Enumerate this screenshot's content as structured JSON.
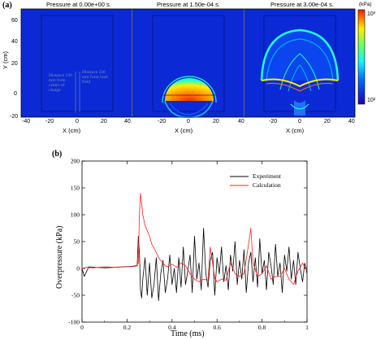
{
  "panel_a": {
    "tag": "(a)",
    "titles": [
      "Pressure at 0.00e+00 s.",
      "Pressure at 1.50e-04 s.",
      "Pressure at 3.00e-04 s."
    ],
    "xlabel": "X (cm)",
    "ylabel": "Y (cm)",
    "xticks": [
      "-40",
      "-20",
      "0",
      "20",
      "40"
    ],
    "yticks": [
      "60",
      "40",
      "20",
      "0",
      "-20"
    ],
    "colorbar": {
      "unit": "(kPa)",
      "max_label": "10³",
      "min_label": "10²"
    },
    "annotation_left": "Distance 230 mm from center of charge",
    "annotation_right": "Distance 230 mm from load field",
    "colors": {
      "background": "#0b2ad6",
      "hot": "#ff2a00",
      "warm": "#ffdd00",
      "mid": "#18ffd0"
    }
  },
  "chart_data": {
    "type": "line",
    "tag": "(b)",
    "xlabel": "Time (ms)",
    "ylabel": "Overpressure (kPa)",
    "xlim": [
      0,
      1
    ],
    "ylim": [
      -100,
      200
    ],
    "xticks": [
      "0",
      "0.2",
      "0.4",
      "0.6",
      "0.8",
      "1"
    ],
    "yticks": [
      "200",
      "150",
      "100",
      "50",
      "0",
      "-50",
      "-100"
    ],
    "legend_position": "top-right",
    "series": [
      {
        "name": "Experiment",
        "color": "#000000",
        "x": [
          0,
          0.01,
          0.03,
          0.06,
          0.1,
          0.14,
          0.18,
          0.22,
          0.245,
          0.25,
          0.255,
          0.26,
          0.265,
          0.27,
          0.28,
          0.29,
          0.3,
          0.31,
          0.32,
          0.33,
          0.34,
          0.35,
          0.36,
          0.37,
          0.38,
          0.39,
          0.4,
          0.41,
          0.42,
          0.43,
          0.44,
          0.45,
          0.46,
          0.47,
          0.48,
          0.49,
          0.5,
          0.51,
          0.52,
          0.53,
          0.54,
          0.55,
          0.56,
          0.57,
          0.58,
          0.59,
          0.6,
          0.61,
          0.62,
          0.63,
          0.64,
          0.65,
          0.66,
          0.67,
          0.68,
          0.69,
          0.7,
          0.71,
          0.72,
          0.73,
          0.74,
          0.75,
          0.76,
          0.77,
          0.78,
          0.79,
          0.8,
          0.81,
          0.82,
          0.83,
          0.84,
          0.85,
          0.86,
          0.87,
          0.88,
          0.89,
          0.9,
          0.91,
          0.92,
          0.93,
          0.94,
          0.95,
          0.96,
          0.97,
          0.98,
          0.99,
          1.0
        ],
        "y": [
          0,
          -15,
          3,
          2,
          1,
          2,
          3,
          4,
          5,
          60,
          30,
          -40,
          -55,
          -20,
          20,
          -50,
          10,
          -55,
          -30,
          20,
          -60,
          -10,
          15,
          -45,
          -20,
          25,
          -30,
          0,
          -45,
          20,
          -35,
          40,
          -30,
          -5,
          25,
          -45,
          60,
          -20,
          10,
          -40,
          75,
          -10,
          -35,
          15,
          30,
          -50,
          20,
          -10,
          40,
          -25,
          5,
          -40,
          25,
          -5,
          50,
          -30,
          15,
          -20,
          35,
          -45,
          10,
          30,
          -25,
          20,
          -35,
          55,
          -10,
          15,
          -40,
          30,
          5,
          -30,
          45,
          -15,
          10,
          -45,
          25,
          -5,
          40,
          -20,
          15,
          -30,
          30,
          0,
          -25,
          10,
          -10
        ]
      },
      {
        "name": "Calculation",
        "color": "#ff2020",
        "x": [
          0,
          0.02,
          0.05,
          0.1,
          0.15,
          0.2,
          0.24,
          0.25,
          0.255,
          0.26,
          0.265,
          0.27,
          0.28,
          0.29,
          0.3,
          0.31,
          0.32,
          0.33,
          0.34,
          0.35,
          0.36,
          0.37,
          0.38,
          0.39,
          0.4,
          0.42,
          0.44,
          0.46,
          0.48,
          0.5,
          0.52,
          0.54,
          0.56,
          0.57,
          0.58,
          0.59,
          0.6,
          0.62,
          0.64,
          0.66,
          0.68,
          0.7,
          0.72,
          0.74,
          0.75,
          0.76,
          0.78,
          0.8,
          0.82,
          0.84,
          0.86,
          0.88,
          0.9,
          0.92,
          0.94,
          0.96,
          0.98,
          1.0
        ],
        "y": [
          0,
          2,
          1,
          3,
          2,
          3,
          4,
          10,
          100,
          140,
          120,
          100,
          80,
          70,
          60,
          45,
          38,
          30,
          20,
          15,
          10,
          5,
          3,
          5,
          8,
          2,
          10,
          5,
          -10,
          -20,
          -25,
          -20,
          -22,
          40,
          10,
          -18,
          -25,
          -20,
          -22,
          10,
          -10,
          -15,
          -10,
          45,
          75,
          10,
          -15,
          -10,
          5,
          -20,
          -15,
          -15,
          0,
          -20,
          -30,
          -5,
          10,
          -5
        ]
      }
    ]
  }
}
